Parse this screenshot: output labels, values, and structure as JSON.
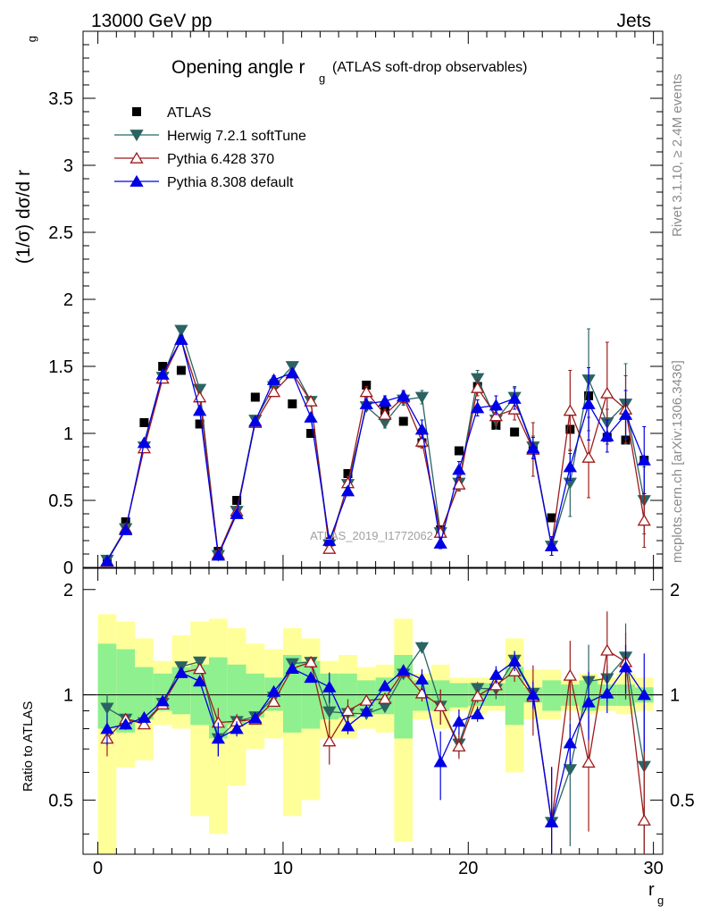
{
  "header": {
    "left": "13000 GeV pp",
    "right": "Jets"
  },
  "sidebar": {
    "rivet": "Rivet 3.1.10, ≥ 2.4M events",
    "mcplots": "mcplots.cern.ch [arXiv:1306.3436]"
  },
  "chart_data": {
    "type": "line",
    "title_main": "Opening angle r",
    "title_sub": "g",
    "title_paren": "(ATLAS soft-drop observables)",
    "watermark": "ATLAS_2019_I1772062",
    "ylabel": "(1/σ) dσ/d r",
    "ylabel_sub": "g",
    "xlabel": "r",
    "xlabel_sub": "g",
    "ratio_ylabel": "Ratio to ATLAS",
    "xlim": [
      -0.8,
      30.5
    ],
    "ylim": [
      0,
      4
    ],
    "ratio_ylim": [
      0.35,
      2.3
    ],
    "x_ticks": [
      "0",
      "10",
      "20",
      "30"
    ],
    "y_ticks": [
      "0",
      "0.5",
      "1",
      "1.5",
      "2",
      "2.5",
      "3",
      "3.5"
    ],
    "ratio_y_ticks": [
      "0.5",
      "1",
      "2"
    ],
    "x": [
      0.5,
      1.5,
      2.5,
      3.5,
      4.5,
      5.5,
      6.5,
      7.5,
      8.5,
      9.5,
      10.5,
      11.5,
      12.5,
      13.5,
      14.5,
      15.5,
      16.5,
      17.5,
      18.5,
      19.5,
      20.5,
      21.5,
      22.5,
      23.5,
      24.5,
      25.5,
      26.5,
      27.5,
      28.5,
      29.5
    ],
    "series": [
      {
        "name": "ATLAS",
        "marker": "square",
        "color": "#000000",
        "values": [
          0.06,
          0.34,
          1.08,
          1.5,
          1.47,
          1.07,
          0.12,
          0.5,
          1.27,
          1.37,
          1.22,
          1.0,
          0.19,
          0.7,
          1.36,
          1.17,
          1.09,
          0.93,
          0.28,
          0.87,
          1.35,
          1.06,
          1.01,
          0.89,
          0.37,
          1.03,
          1.28,
          0.97,
          0.95,
          0.8
        ]
      },
      {
        "name": "Herwig 7.2.1 softTune",
        "marker": "triangle-down",
        "color": "#2b6363",
        "values": [
          0.055,
          0.29,
          0.9,
          1.42,
          1.77,
          1.33,
          0.09,
          0.42,
          1.1,
          1.35,
          1.5,
          1.24,
          0.17,
          0.62,
          1.2,
          1.08,
          1.25,
          1.27,
          0.26,
          0.63,
          1.41,
          1.1,
          1.27,
          0.9,
          0.16,
          0.63,
          1.4,
          1.08,
          1.22,
          0.5
        ]
      },
      {
        "name": "Pythia 6.428 370",
        "marker": "triangle-up-open",
        "color": "#9e1b1b",
        "values": [
          0.045,
          0.29,
          0.89,
          1.41,
          1.7,
          1.27,
          0.1,
          0.42,
          1.08,
          1.31,
          1.45,
          1.24,
          0.14,
          0.63,
          1.31,
          1.14,
          1.27,
          0.94,
          0.26,
          0.62,
          1.34,
          1.13,
          1.18,
          0.88,
          0.16,
          1.17,
          0.82,
          1.3,
          1.18,
          0.35
        ]
      },
      {
        "name": "Pythia 8.308 default",
        "marker": "triangle-up",
        "color": "#0000e6",
        "values": [
          0.048,
          0.28,
          0.93,
          1.44,
          1.7,
          1.17,
          0.09,
          0.4,
          1.09,
          1.4,
          1.45,
          1.12,
          0.2,
          0.57,
          1.22,
          1.24,
          1.28,
          1.03,
          0.18,
          0.73,
          1.19,
          1.21,
          1.26,
          0.89,
          0.16,
          0.75,
          1.22,
          0.98,
          1.14,
          0.8
        ]
      }
    ],
    "error_bars": {
      "Herwig 7.2.1 softTune": [
        0.005,
        0.01,
        0.02,
        0.02,
        0.03,
        0.03,
        0.01,
        0.02,
        0.03,
        0.03,
        0.03,
        0.03,
        0.02,
        0.03,
        0.03,
        0.04,
        0.04,
        0.05,
        0.03,
        0.05,
        0.06,
        0.07,
        0.08,
        0.08,
        0.07,
        0.25,
        0.38,
        0.1,
        0.3,
        0.25
      ],
      "Pythia 6.428 370": [
        0.005,
        0.01,
        0.02,
        0.02,
        0.03,
        0.03,
        0.01,
        0.02,
        0.03,
        0.03,
        0.03,
        0.03,
        0.02,
        0.05,
        0.04,
        0.04,
        0.04,
        0.05,
        0.03,
        0.05,
        0.06,
        0.07,
        0.08,
        0.2,
        0.07,
        0.3,
        0.3,
        0.38,
        0.25,
        0.2
      ],
      "Pythia 8.308 default": [
        0.005,
        0.01,
        0.02,
        0.02,
        0.03,
        0.03,
        0.01,
        0.02,
        0.03,
        0.03,
        0.03,
        0.03,
        0.02,
        0.03,
        0.04,
        0.04,
        0.04,
        0.07,
        0.04,
        0.06,
        0.06,
        0.07,
        0.08,
        0.08,
        0.07,
        0.1,
        0.27,
        0.12,
        0.18,
        0.25
      ]
    },
    "ratio_band_stat": [
      [
        0.8,
        1.4
      ],
      [
        0.78,
        1.35
      ],
      [
        0.85,
        1.2
      ],
      [
        0.9,
        1.15
      ],
      [
        0.88,
        1.2
      ],
      [
        0.82,
        1.22
      ],
      [
        0.75,
        1.28
      ],
      [
        0.82,
        1.22
      ],
      [
        0.86,
        1.15
      ],
      [
        0.9,
        1.12
      ],
      [
        0.78,
        1.3
      ],
      [
        0.8,
        1.25
      ],
      [
        0.85,
        1.15
      ],
      [
        0.86,
        1.15
      ],
      [
        0.88,
        1.1
      ],
      [
        0.88,
        1.12
      ],
      [
        0.75,
        1.3
      ],
      [
        0.9,
        1.1
      ],
      [
        0.9,
        1.1
      ],
      [
        0.92,
        1.08
      ],
      [
        0.93,
        1.08
      ],
      [
        0.93,
        1.08
      ],
      [
        0.82,
        1.2
      ],
      [
        0.95,
        1.05
      ],
      [
        0.9,
        1.1
      ],
      [
        0.93,
        1.07
      ],
      [
        0.9,
        1.1
      ],
      [
        0.93,
        1.07
      ],
      [
        0.93,
        1.07
      ],
      [
        0.95,
        1.05
      ]
    ],
    "ratio_band_total": [
      [
        0.3,
        1.7
      ],
      [
        0.62,
        1.62
      ],
      [
        0.65,
        1.45
      ],
      [
        0.82,
        1.25
      ],
      [
        0.8,
        1.48
      ],
      [
        0.45,
        1.62
      ],
      [
        0.4,
        1.65
      ],
      [
        0.55,
        1.55
      ],
      [
        0.7,
        1.4
      ],
      [
        0.75,
        1.35
      ],
      [
        0.45,
        1.55
      ],
      [
        0.5,
        1.45
      ],
      [
        0.75,
        1.25
      ],
      [
        0.75,
        1.3
      ],
      [
        0.8,
        1.2
      ],
      [
        0.78,
        1.22
      ],
      [
        0.38,
        1.65
      ],
      [
        0.85,
        1.15
      ],
      [
        0.8,
        1.22
      ],
      [
        0.9,
        1.12
      ],
      [
        0.88,
        1.12
      ],
      [
        0.9,
        1.12
      ],
      [
        0.6,
        1.45
      ],
      [
        0.85,
        1.18
      ],
      [
        0.85,
        1.18
      ],
      [
        0.9,
        1.1
      ],
      [
        0.88,
        1.15
      ],
      [
        0.9,
        1.12
      ],
      [
        0.88,
        1.15
      ],
      [
        0.9,
        1.12
      ]
    ],
    "band_colors": {
      "stat": "#8ef08e",
      "total": "#ffff99"
    }
  }
}
